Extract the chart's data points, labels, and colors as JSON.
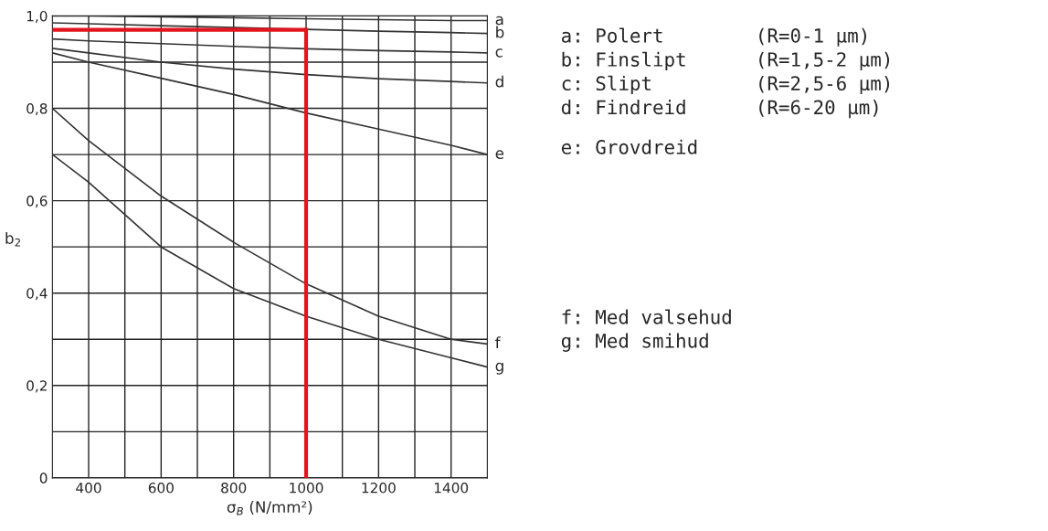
{
  "chart_data": {
    "type": "line",
    "xlabel": "σ$_{B}$ (N/mm²)",
    "ylabel": "b$_{2}$",
    "x": [
      300,
      400,
      600,
      800,
      1000,
      1200,
      1400,
      1500
    ],
    "series": [
      {
        "name": "a",
        "color": "#333333",
        "values": [
          1.0,
          1.0,
          0.998,
          0.996,
          0.994,
          0.992,
          0.99,
          0.99
        ]
      },
      {
        "name": "b",
        "color": "#333333",
        "values": [
          0.985,
          0.983,
          0.979,
          0.975,
          0.971,
          0.967,
          0.964,
          0.962
        ]
      },
      {
        "name": "c",
        "color": "#333333",
        "values": [
          0.95,
          0.946,
          0.94,
          0.934,
          0.929,
          0.925,
          0.922,
          0.92
        ]
      },
      {
        "name": "d",
        "color": "#333333",
        "values": [
          0.93,
          0.92,
          0.9,
          0.885,
          0.873,
          0.864,
          0.858,
          0.855
        ]
      },
      {
        "name": "e",
        "color": "#333333",
        "values": [
          0.92,
          0.9,
          0.865,
          0.83,
          0.79,
          0.755,
          0.72,
          0.7
        ]
      },
      {
        "name": "f",
        "color": "#333333",
        "values": [
          0.8,
          0.73,
          0.61,
          0.51,
          0.42,
          0.35,
          0.3,
          0.29
        ]
      },
      {
        "name": "g",
        "color": "#333333",
        "values": [
          0.7,
          0.64,
          0.5,
          0.41,
          0.35,
          0.3,
          0.26,
          0.24
        ]
      }
    ],
    "ref_lines": [
      {
        "axis": "y",
        "value": 0.97,
        "color": "#e3141b"
      },
      {
        "axis": "x",
        "value": 1000,
        "color": "#e3141b"
      }
    ],
    "xlim": [
      300,
      1500
    ],
    "ylim": [
      0,
      1.0
    ],
    "xticks": [
      400,
      {
        "value": 500,
        "label": null
      },
      600,
      {
        "value": 700,
        "label": null
      },
      800,
      {
        "value": 900,
        "label": null
      },
      1000,
      {
        "value": 1100,
        "label": null
      },
      1200,
      {
        "value": 1300,
        "label": null
      },
      1400
    ],
    "yticks": [
      0,
      {
        "value": 0.1,
        "label": null
      },
      {
        "value": 0.2,
        "label": "0,2"
      },
      {
        "value": 0.3,
        "label": null
      },
      {
        "value": 0.4,
        "label": "0,4"
      },
      {
        "value": 0.5,
        "label": null
      },
      {
        "value": 0.6,
        "label": "0,6"
      },
      {
        "value": 0.7,
        "label": null
      },
      {
        "value": 0.8,
        "label": "0,8"
      },
      {
        "value": 0.9,
        "label": null
      },
      {
        "value": 1.0,
        "label": "1,0"
      }
    ],
    "grid": true,
    "annotations": [
      "a: Polert        (R=0-1 µm)",
      "b: Finslipt      (R=1,5-2 µm)",
      "c: Slipt         (R=2,5-6 µm)",
      "d: Findreid      (R=6-20 µm)",
      "e: Grovdreid",
      "f: Med valsehud",
      "g: Med smihud"
    ]
  }
}
